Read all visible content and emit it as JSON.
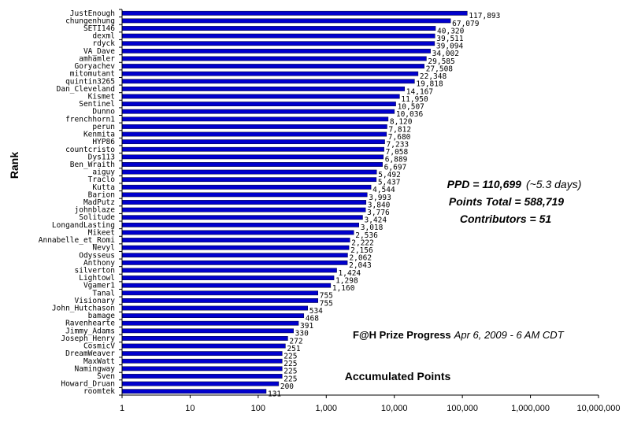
{
  "chart_data": {
    "type": "bar",
    "orientation": "horizontal",
    "x_scale": "log",
    "xlim": [
      1,
      10000000
    ],
    "ylabel": "Rank",
    "xlabel": "Accumulated Points",
    "grid": false,
    "bar_color": "#0000cc",
    "x_ticks": [
      "1",
      "10",
      "100",
      "1,000",
      "10,000",
      "100,000",
      "1,000,000",
      "10,000,000"
    ],
    "categories": [
      "JustEnough",
      "chungenhung",
      "SETI146",
      "dexml",
      "rdyck",
      "VA_Dave",
      "amhamler",
      "Goryachev",
      "mitomutant",
      "quintin3265",
      "Dan_Cleveland",
      "Kismet",
      "Sentinel",
      "Dunno",
      "frenchhorn1",
      "perun",
      "Kenmita",
      "HYP86",
      "countcristo",
      "Dys113",
      "Ben_Wraith",
      "aiguy",
      "Traclo",
      "Kutta",
      "Barion",
      "MadPutz",
      "johnblaze",
      "Solitude",
      "LongandLasting",
      "Mikeet",
      "Annabelle_et_Romi",
      "Nevyl",
      "Odysseus",
      "Anthony",
      "silverton",
      "Lightowl",
      "Vgamer1",
      "Tanal",
      "Visionary",
      "John_Hutchason",
      "bamage",
      "Ravenhearte",
      "Jimmy_Adams",
      "Joseph_Henry",
      "CosmicV",
      "DreamWeaver",
      "MaxWatt",
      "Namingway",
      "Sven",
      "Howard_Druan",
      "roomtek"
    ],
    "values": [
      117893,
      67079,
      40320,
      39511,
      39094,
      34002,
      29585,
      27508,
      22348,
      19818,
      14167,
      11950,
      10507,
      10036,
      8120,
      7812,
      7680,
      7233,
      7058,
      6889,
      6697,
      5492,
      5437,
      4544,
      3993,
      3840,
      3776,
      3424,
      3018,
      2536,
      2222,
      2156,
      2062,
      2043,
      1424,
      1298,
      1160,
      755,
      755,
      534,
      468,
      391,
      330,
      272,
      251,
      225,
      225,
      225,
      225,
      200,
      131
    ],
    "value_labels": [
      "117,893",
      "67,079",
      "40,320",
      "39,511",
      "39,094",
      "34,002",
      "29,585",
      "27,508",
      "22,348",
      "19,818",
      "14,167",
      "11,950",
      "10,507",
      "10,036",
      "8,120",
      "7,812",
      "7,680",
      "7,233",
      "7,058",
      "6,889",
      "6,697",
      "5,492",
      "5,437",
      "4,544",
      "3,993",
      "3,840",
      "3,776",
      "3,424",
      "3,018",
      "2,536",
      "2,222",
      "2,156",
      "2,062",
      "2,043",
      "1,424",
      "1,298",
      "1,160",
      "755",
      "755",
      "534",
      "468",
      "391",
      "330",
      "272",
      "251",
      "225",
      "225",
      "225",
      "225",
      "200",
      "131"
    ],
    "annotations": {
      "ppd_bold": "PPD = 110,699",
      "ppd_note": "(~5.3 days)",
      "points_total": "Points Total = 588,719",
      "contributors": "Contributors = 51",
      "prize_title": "F@H Prize Progress",
      "prize_date": "Apr 6, 2009 - 6 AM CDT"
    }
  }
}
